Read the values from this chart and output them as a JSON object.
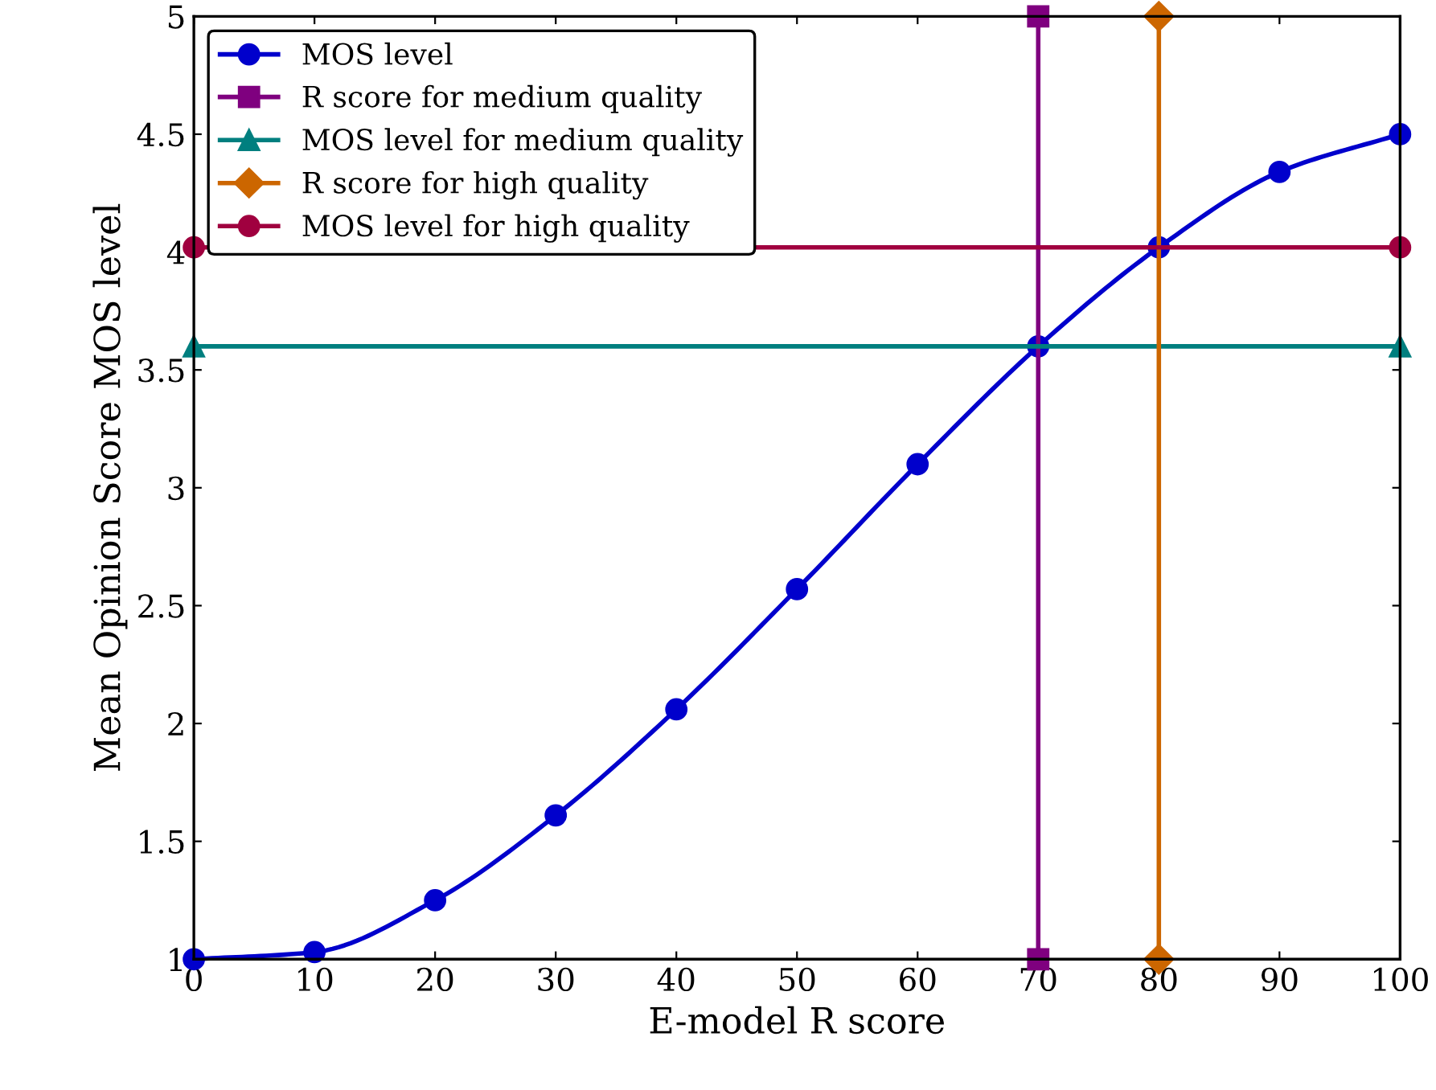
{
  "chart_data": {
    "type": "line",
    "xlabel": "E-model R score",
    "ylabel": "Mean Opinion Score MOS level",
    "xlim": [
      0,
      100
    ],
    "ylim": [
      1,
      5
    ],
    "xticks": [
      0,
      10,
      20,
      30,
      40,
      50,
      60,
      70,
      80,
      90,
      100
    ],
    "yticks": [
      1,
      1.5,
      2,
      2.5,
      3,
      3.5,
      4,
      4.5,
      5
    ],
    "grid": false,
    "legend": "top left",
    "line_style": "solid",
    "series": [
      {
        "name": "MOS level",
        "color": "#0000cc",
        "marker": "circle",
        "x": [
          0,
          10,
          20,
          30,
          40,
          50,
          60,
          70,
          80,
          90,
          100
        ],
        "values": [
          1,
          1.03,
          1.25,
          1.61,
          2.06,
          2.57,
          3.1,
          3.6,
          4.02,
          4.34,
          4.5
        ]
      },
      {
        "name": "R score for medium quality",
        "color": "#7f007f",
        "marker": "square",
        "x": [
          70,
          70
        ],
        "values": [
          1,
          5
        ]
      },
      {
        "name": "MOS level for medium quality",
        "color": "#007f7f",
        "marker": "triangle",
        "x": [
          0,
          100
        ],
        "values": [
          3.6,
          3.6
        ]
      },
      {
        "name": "R score for high quality",
        "color": "#cc6600",
        "marker": "diamond",
        "x": [
          80,
          80
        ],
        "values": [
          1,
          5
        ]
      },
      {
        "name": "MOS level for high quality",
        "color": "#a0003f",
        "marker": "circle",
        "x": [
          0,
          100
        ],
        "values": [
          4.02,
          4.02
        ]
      }
    ]
  }
}
